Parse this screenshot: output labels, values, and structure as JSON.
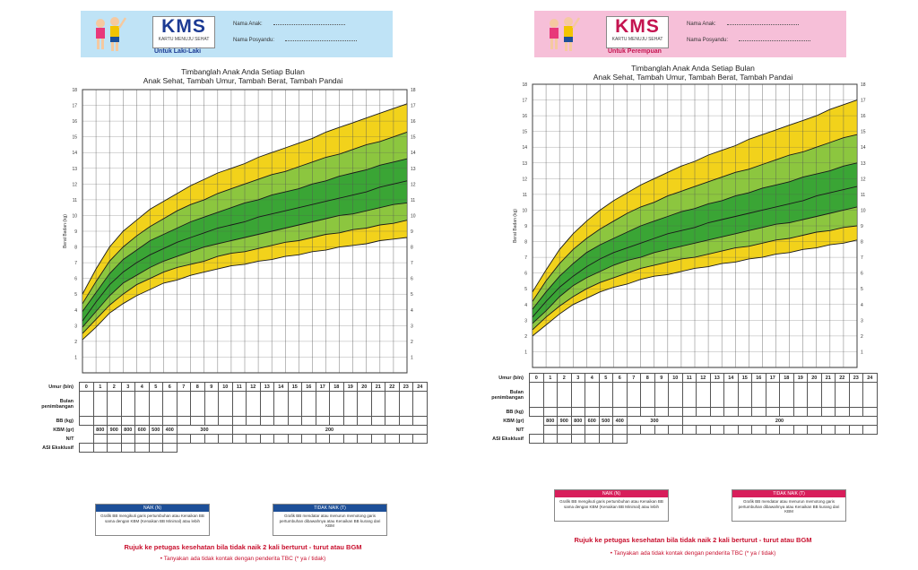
{
  "boy": {
    "logo": "KMS",
    "logo_sub": "KARTU MENUJU SEHAT",
    "untuk": "Untuk Laki-Laki",
    "nama_anak": "Nama Anak",
    "nama_posyandu": "Nama Posyandu",
    "slogan1": "Timbanglah Anak Anda Setiap Bulan",
    "slogan2": "Anak Sehat, Tambah Umur, Tambah Berat, Tambah Pandai",
    "ylabel": "Berat Badan (kg)",
    "yticks": [
      "1",
      "2",
      "3",
      "4",
      "5",
      "6",
      "7",
      "8",
      "9",
      "10",
      "11",
      "12",
      "13",
      "14",
      "15",
      "16",
      "17",
      "18"
    ],
    "rows": [
      "Umur (bln)",
      "Bulan penimbangan",
      "BB (kg)",
      "KBM (gr)",
      "N/T",
      "ASI Eksklusif"
    ],
    "kbm": [
      "800",
      "900",
      "800",
      "600",
      "500",
      "400",
      "300",
      "200"
    ],
    "legend_n_title": "NAIK (N)",
    "legend_n_text": "Grafik BB mengikuti garis pertumbuhan atau Kenaikan BB sama dengan KBM (Kenaikan BB Minimal) atau lebih",
    "legend_t_title": "TIDAK NAIK (T)",
    "legend_t_text": "Grafik BB mendatar atau menurun memotong garis pertumbuhan dibawahnya atau Kenaikan BB kurang dari KBM",
    "rujuk": "Rujuk ke petugas kesehatan bila tidak naik 2 kali berturut - turut atau BGM",
    "tanya": "Tanyakan ada tidak kontak dengan penderita TBC (* ya / tidak)"
  },
  "girl": {
    "logo": "KMS",
    "logo_sub": "KARTU MENUJU SEHAT",
    "untuk": "Untuk Perempuan",
    "nama_anak": "Nama Anak",
    "nama_posyandu": "Nama Posyandu",
    "slogan1": "Timbanglah Anak Anda Setiap Bulan",
    "slogan2": "Anak Sehat, Tambah Umur, Tambah Berat, Tambah Pandai",
    "ylabel": "Berat Badan (kg)",
    "yticks": [
      "1",
      "2",
      "3",
      "4",
      "5",
      "6",
      "7",
      "8",
      "9",
      "10",
      "11",
      "12",
      "13",
      "14",
      "15",
      "16",
      "17",
      "18"
    ],
    "rows": [
      "Umur (bln)",
      "Bulan penimbangan",
      "BB (kg)",
      "KBM (gr)",
      "N/T",
      "ASI Eksklusif"
    ],
    "kbm": [
      "800",
      "900",
      "800",
      "600",
      "500",
      "400",
      "300",
      "200"
    ],
    "legend_n_title": "NAIK (N)",
    "legend_n_text": "Grafik BB mengikuti garis pertumbuhan atau Kenaikan BB sama dengan KBM (Kenaikan BB Minimal) atau lebih",
    "legend_t_title": "TIDAK NAIK (T)",
    "legend_t_text": "Grafik BB mendatar atau menurun memotong garis pertumbuhan dibawahnya atau Kenaikan BB kurang dari KBM",
    "rujuk": "Rujuk ke petugas kesehatan bila tidak naik 2 kali berturut - turut atau BGM",
    "tanya": "Tanyakan ada tidak kontak dengan penderita TBC (* ya / tidak)"
  },
  "months": [
    "0",
    "1",
    "2",
    "3",
    "4",
    "5",
    "6",
    "7",
    "8",
    "9",
    "10",
    "11",
    "12",
    "13",
    "14",
    "15",
    "16",
    "17",
    "18",
    "19",
    "20",
    "21",
    "22",
    "23",
    "24"
  ],
  "colors": {
    "yellow": "#f2d21b",
    "lightgreen": "#8cc63f",
    "green": "#3aa535",
    "darkgreen": "#1f8a3a",
    "boy_accent": "#1d4f98",
    "girl_accent": "#d81e5b"
  },
  "chart_data": [
    {
      "type": "area",
      "x": [
        0,
        1,
        2,
        3,
        4,
        5,
        6,
        7,
        8,
        9,
        10,
        11,
        12,
        13,
        14,
        15,
        16,
        17,
        18,
        19,
        20,
        21,
        22,
        23,
        24
      ],
      "series": [
        {
          "values": [
            2.1,
            2.9,
            3.8,
            4.4,
            4.9,
            5.3,
            5.7,
            5.9,
            6.2,
            6.4,
            6.6,
            6.8,
            6.9,
            7.1,
            7.2,
            7.4,
            7.5,
            7.7,
            7.8,
            8.0,
            8.1,
            8.2,
            8.4,
            8.5,
            8.6
          ]
        },
        {
          "values": [
            2.5,
            3.4,
            4.3,
            5.0,
            5.6,
            6.0,
            6.4,
            6.7,
            6.9,
            7.1,
            7.4,
            7.6,
            7.7,
            7.9,
            8.1,
            8.3,
            8.4,
            8.6,
            8.8,
            8.9,
            9.1,
            9.2,
            9.4,
            9.5,
            9.7
          ]
        },
        {
          "values": [
            2.9,
            3.9,
            4.9,
            5.7,
            6.2,
            6.7,
            7.1,
            7.4,
            7.7,
            8.0,
            8.2,
            8.4,
            8.6,
            8.8,
            9.0,
            9.2,
            9.4,
            9.6,
            9.8,
            10.0,
            10.1,
            10.3,
            10.5,
            10.7,
            10.8
          ]
        },
        {
          "values": [
            3.3,
            4.5,
            5.6,
            6.4,
            7.0,
            7.5,
            7.9,
            8.3,
            8.6,
            8.9,
            9.2,
            9.4,
            9.6,
            9.9,
            10.1,
            10.3,
            10.5,
            10.7,
            10.9,
            11.1,
            11.3,
            11.5,
            11.8,
            12.0,
            12.2
          ]
        },
        {
          "values": [
            3.9,
            5.1,
            6.3,
            7.2,
            7.8,
            8.4,
            8.8,
            9.2,
            9.6,
            9.9,
            10.2,
            10.5,
            10.8,
            11.0,
            11.3,
            11.5,
            11.7,
            12.0,
            12.2,
            12.5,
            12.7,
            12.9,
            13.2,
            13.4,
            13.6
          ]
        },
        {
          "values": [
            4.4,
            5.8,
            7.1,
            8.0,
            8.7,
            9.3,
            9.8,
            10.3,
            10.7,
            11.0,
            11.4,
            11.7,
            12.0,
            12.3,
            12.6,
            12.8,
            13.1,
            13.4,
            13.7,
            13.9,
            14.2,
            14.5,
            14.7,
            15.0,
            15.3
          ]
        },
        {
          "values": [
            5.0,
            6.6,
            8.0,
            9.0,
            9.7,
            10.4,
            10.9,
            11.4,
            11.9,
            12.3,
            12.7,
            13.0,
            13.3,
            13.7,
            14.0,
            14.3,
            14.6,
            14.9,
            15.3,
            15.6,
            15.9,
            16.2,
            16.5,
            16.8,
            17.1
          ]
        }
      ],
      "xlabel": "Umur (bln)",
      "ylabel": "Berat Badan (kg)",
      "ylim": [
        0,
        18
      ],
      "grid": true
    },
    {
      "type": "area",
      "x": [
        0,
        1,
        2,
        3,
        4,
        5,
        6,
        7,
        8,
        9,
        10,
        11,
        12,
        13,
        14,
        15,
        16,
        17,
        18,
        19,
        20,
        21,
        22,
        23,
        24
      ],
      "series": [
        {
          "values": [
            2.0,
            2.7,
            3.4,
            4.0,
            4.4,
            4.8,
            5.1,
            5.3,
            5.6,
            5.8,
            5.9,
            6.1,
            6.3,
            6.4,
            6.6,
            6.7,
            6.9,
            7.0,
            7.2,
            7.3,
            7.5,
            7.6,
            7.8,
            7.9,
            8.1
          ]
        },
        {
          "values": [
            2.4,
            3.2,
            3.9,
            4.5,
            5.0,
            5.4,
            5.7,
            6.0,
            6.3,
            6.5,
            6.7,
            6.9,
            7.0,
            7.2,
            7.4,
            7.6,
            7.7,
            7.9,
            8.1,
            8.2,
            8.4,
            8.6,
            8.7,
            8.9,
            9.0
          ]
        },
        {
          "values": [
            2.8,
            3.6,
            4.5,
            5.2,
            5.7,
            6.1,
            6.5,
            6.8,
            7.0,
            7.3,
            7.5,
            7.7,
            7.9,
            8.1,
            8.3,
            8.5,
            8.7,
            8.9,
            9.1,
            9.2,
            9.4,
            9.6,
            9.8,
            10.0,
            10.2
          ]
        },
        {
          "values": [
            3.2,
            4.2,
            5.1,
            5.8,
            6.4,
            6.9,
            7.3,
            7.6,
            7.9,
            8.2,
            8.5,
            8.7,
            8.9,
            9.2,
            9.4,
            9.6,
            9.8,
            10.0,
            10.2,
            10.4,
            10.6,
            10.9,
            11.1,
            11.3,
            11.5
          ]
        },
        {
          "values": [
            3.7,
            4.8,
            5.8,
            6.6,
            7.3,
            7.8,
            8.2,
            8.6,
            9.0,
            9.3,
            9.6,
            9.9,
            10.1,
            10.4,
            10.6,
            10.9,
            11.1,
            11.4,
            11.6,
            11.8,
            12.1,
            12.3,
            12.5,
            12.8,
            13.0
          ]
        },
        {
          "values": [
            4.2,
            5.5,
            6.6,
            7.5,
            8.2,
            8.8,
            9.3,
            9.8,
            10.2,
            10.5,
            10.9,
            11.2,
            11.5,
            11.8,
            12.1,
            12.4,
            12.6,
            12.9,
            13.2,
            13.5,
            13.7,
            14.0,
            14.3,
            14.6,
            14.8
          ]
        },
        {
          "values": [
            4.8,
            6.2,
            7.5,
            8.5,
            9.3,
            10.0,
            10.6,
            11.1,
            11.6,
            12.0,
            12.4,
            12.8,
            13.1,
            13.5,
            13.8,
            14.1,
            14.5,
            14.8,
            15.1,
            15.4,
            15.7,
            16.0,
            16.4,
            16.7,
            17.0
          ]
        }
      ],
      "xlabel": "Umur (bln)",
      "ylabel": "Berat Badan (kg)",
      "ylim": [
        0,
        18
      ],
      "grid": true
    }
  ]
}
